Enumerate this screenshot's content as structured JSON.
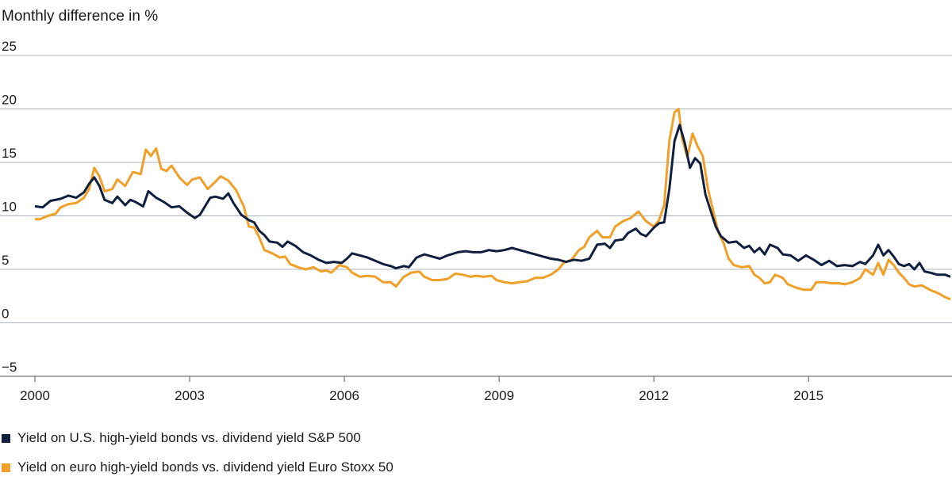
{
  "chart_data": {
    "type": "line",
    "ylabel": "Monthly difference in %",
    "ylim": [
      -5,
      25
    ],
    "xlim": [
      2000.0,
      2017.75
    ],
    "yticks": [
      "25",
      "20",
      "15",
      "10",
      "5",
      "0",
      "−5"
    ],
    "ytick_values": [
      25,
      20,
      15,
      10,
      5,
      0,
      -5
    ],
    "xticks": [
      "2000",
      "2003",
      "2006",
      "2009",
      "2012",
      "2015"
    ],
    "xtick_values": [
      2000,
      2003,
      2006,
      2009,
      2012,
      2015
    ],
    "grid": "horizontal",
    "legend_position": "bottom-left",
    "series": [
      {
        "name": "Yield on U.S. high-yield bonds vs. dividend yield S&P 500",
        "color": "#0f1f3d",
        "points": [
          [
            2000.0,
            10.9
          ],
          [
            2000.15,
            10.8
          ],
          [
            2000.3,
            11.4
          ],
          [
            2000.5,
            11.6
          ],
          [
            2000.65,
            11.9
          ],
          [
            2000.8,
            11.7
          ],
          [
            2000.95,
            12.2
          ],
          [
            2001.05,
            13.0
          ],
          [
            2001.15,
            13.6
          ],
          [
            2001.25,
            12.8
          ],
          [
            2001.35,
            11.5
          ],
          [
            2001.5,
            11.2
          ],
          [
            2001.6,
            11.8
          ],
          [
            2001.75,
            11.0
          ],
          [
            2001.85,
            11.5
          ],
          [
            2001.95,
            11.3
          ],
          [
            2002.1,
            10.9
          ],
          [
            2002.2,
            12.3
          ],
          [
            2002.35,
            11.7
          ],
          [
            2002.5,
            11.3
          ],
          [
            2002.65,
            10.8
          ],
          [
            2002.8,
            10.9
          ],
          [
            2002.95,
            10.3
          ],
          [
            2003.1,
            9.8
          ],
          [
            2003.2,
            10.1
          ],
          [
            2003.4,
            11.7
          ],
          [
            2003.5,
            11.8
          ],
          [
            2003.65,
            11.6
          ],
          [
            2003.75,
            12.1
          ],
          [
            2003.85,
            11.2
          ],
          [
            2004.0,
            10.1
          ],
          [
            2004.15,
            9.6
          ],
          [
            2004.25,
            9.4
          ],
          [
            2004.35,
            8.6
          ],
          [
            2004.45,
            8.2
          ],
          [
            2004.55,
            7.6
          ],
          [
            2004.7,
            7.5
          ],
          [
            2004.8,
            7.1
          ],
          [
            2004.9,
            7.6
          ],
          [
            2005.05,
            7.2
          ],
          [
            2005.2,
            6.6
          ],
          [
            2005.35,
            6.3
          ],
          [
            2005.5,
            5.9
          ],
          [
            2005.65,
            5.6
          ],
          [
            2005.8,
            5.7
          ],
          [
            2005.95,
            5.6
          ],
          [
            2006.05,
            6.0
          ],
          [
            2006.15,
            6.5
          ],
          [
            2006.3,
            6.3
          ],
          [
            2006.45,
            6.1
          ],
          [
            2006.6,
            5.8
          ],
          [
            2006.75,
            5.5
          ],
          [
            2006.9,
            5.3
          ],
          [
            2007.0,
            5.1
          ],
          [
            2007.15,
            5.3
          ],
          [
            2007.25,
            5.2
          ],
          [
            2007.4,
            6.1
          ],
          [
            2007.55,
            6.4
          ],
          [
            2007.7,
            6.2
          ],
          [
            2007.85,
            6.0
          ],
          [
            2008.0,
            6.3
          ],
          [
            2008.2,
            6.6
          ],
          [
            2008.35,
            6.7
          ],
          [
            2008.5,
            6.6
          ],
          [
            2008.65,
            6.6
          ],
          [
            2008.8,
            6.8
          ],
          [
            2008.95,
            6.7
          ],
          [
            2009.1,
            6.8
          ],
          [
            2009.25,
            7.0
          ],
          [
            2009.4,
            6.8
          ],
          [
            2009.55,
            6.6
          ],
          [
            2009.7,
            6.4
          ],
          [
            2009.85,
            6.2
          ],
          [
            2010.0,
            6.0
          ],
          [
            2010.15,
            5.9
          ],
          [
            2010.3,
            5.7
          ],
          [
            2010.45,
            5.9
          ],
          [
            2010.6,
            5.8
          ],
          [
            2010.75,
            6.0
          ],
          [
            2010.9,
            7.3
          ],
          [
            2011.05,
            7.4
          ],
          [
            2011.15,
            7.0
          ],
          [
            2011.25,
            7.7
          ],
          [
            2011.4,
            7.8
          ],
          [
            2011.5,
            8.4
          ],
          [
            2011.65,
            8.8
          ],
          [
            2011.75,
            8.3
          ],
          [
            2011.85,
            8.1
          ],
          [
            2012.0,
            8.9
          ],
          [
            2012.1,
            9.3
          ],
          [
            2012.2,
            9.4
          ],
          [
            2012.3,
            12.5
          ],
          [
            2012.4,
            17.0
          ],
          [
            2012.5,
            18.5
          ],
          [
            2012.6,
            16.8
          ],
          [
            2012.7,
            14.5
          ],
          [
            2012.8,
            15.4
          ],
          [
            2012.9,
            14.9
          ],
          [
            2013.0,
            12.0
          ],
          [
            2013.1,
            10.5
          ],
          [
            2013.2,
            9.0
          ],
          [
            2013.3,
            8.1
          ],
          [
            2013.45,
            7.5
          ],
          [
            2013.6,
            7.6
          ],
          [
            2013.75,
            7.0
          ],
          [
            2013.85,
            7.2
          ],
          [
            2013.95,
            6.6
          ],
          [
            2014.05,
            7.0
          ],
          [
            2014.15,
            6.4
          ],
          [
            2014.25,
            7.3
          ],
          [
            2014.4,
            7.0
          ],
          [
            2014.5,
            6.4
          ],
          [
            2014.65,
            6.3
          ],
          [
            2014.8,
            5.8
          ],
          [
            2014.95,
            6.3
          ],
          [
            2015.1,
            5.9
          ],
          [
            2015.25,
            5.4
          ],
          [
            2015.4,
            5.8
          ],
          [
            2015.55,
            5.3
          ],
          [
            2015.7,
            5.4
          ],
          [
            2015.85,
            5.3
          ],
          [
            2016.0,
            5.7
          ],
          [
            2016.1,
            5.5
          ],
          [
            2016.25,
            6.3
          ],
          [
            2016.35,
            7.3
          ],
          [
            2016.45,
            6.3
          ],
          [
            2016.55,
            6.8
          ],
          [
            2016.65,
            6.2
          ],
          [
            2016.75,
            5.5
          ],
          [
            2016.85,
            5.3
          ],
          [
            2016.95,
            5.5
          ],
          [
            2017.05,
            5.0
          ],
          [
            2017.15,
            5.6
          ],
          [
            2017.25,
            4.8
          ],
          [
            2017.35,
            4.7
          ],
          [
            2017.5,
            4.5
          ],
          [
            2017.65,
            4.5
          ],
          [
            2017.75,
            4.3
          ]
        ]
      },
      {
        "name": "Yield on euro high-yield bonds vs. dividend yield Euro Stoxx 50",
        "color": "#f0a028",
        "points": [
          [
            2000.0,
            9.7
          ],
          [
            2000.1,
            9.7
          ],
          [
            2000.25,
            10.0
          ],
          [
            2000.4,
            10.2
          ],
          [
            2000.5,
            10.8
          ],
          [
            2000.65,
            11.1
          ],
          [
            2000.8,
            11.2
          ],
          [
            2000.95,
            11.7
          ],
          [
            2001.05,
            12.5
          ],
          [
            2001.15,
            14.5
          ],
          [
            2001.25,
            13.7
          ],
          [
            2001.35,
            12.3
          ],
          [
            2001.5,
            12.5
          ],
          [
            2001.6,
            13.4
          ],
          [
            2001.75,
            12.8
          ],
          [
            2001.9,
            14.1
          ],
          [
            2002.05,
            13.9
          ],
          [
            2002.15,
            16.2
          ],
          [
            2002.25,
            15.6
          ],
          [
            2002.35,
            16.3
          ],
          [
            2002.45,
            14.4
          ],
          [
            2002.55,
            14.2
          ],
          [
            2002.65,
            14.7
          ],
          [
            2002.8,
            13.6
          ],
          [
            2002.95,
            12.9
          ],
          [
            2003.05,
            13.4
          ],
          [
            2003.2,
            13.6
          ],
          [
            2003.35,
            12.5
          ],
          [
            2003.5,
            13.2
          ],
          [
            2003.6,
            13.7
          ],
          [
            2003.75,
            13.3
          ],
          [
            2003.9,
            12.4
          ],
          [
            2004.05,
            10.9
          ],
          [
            2004.15,
            9.0
          ],
          [
            2004.25,
            8.9
          ],
          [
            2004.35,
            8.0
          ],
          [
            2004.45,
            6.8
          ],
          [
            2004.6,
            6.5
          ],
          [
            2004.75,
            6.1
          ],
          [
            2004.85,
            6.2
          ],
          [
            2004.95,
            5.5
          ],
          [
            2005.1,
            5.2
          ],
          [
            2005.25,
            5.0
          ],
          [
            2005.4,
            5.2
          ],
          [
            2005.55,
            4.8
          ],
          [
            2005.65,
            4.9
          ],
          [
            2005.75,
            4.7
          ],
          [
            2005.9,
            5.4
          ],
          [
            2006.05,
            5.2
          ],
          [
            2006.15,
            4.7
          ],
          [
            2006.3,
            4.3
          ],
          [
            2006.45,
            4.4
          ],
          [
            2006.6,
            4.3
          ],
          [
            2006.75,
            3.8
          ],
          [
            2006.9,
            3.8
          ],
          [
            2007.0,
            3.4
          ],
          [
            2007.15,
            4.3
          ],
          [
            2007.3,
            4.7
          ],
          [
            2007.45,
            4.8
          ],
          [
            2007.55,
            4.3
          ],
          [
            2007.7,
            4.0
          ],
          [
            2007.85,
            4.0
          ],
          [
            2008.0,
            4.1
          ],
          [
            2008.15,
            4.6
          ],
          [
            2008.3,
            4.5
          ],
          [
            2008.45,
            4.3
          ],
          [
            2008.55,
            4.4
          ],
          [
            2008.7,
            4.3
          ],
          [
            2008.85,
            4.4
          ],
          [
            2008.95,
            4.0
          ],
          [
            2009.1,
            3.8
          ],
          [
            2009.25,
            3.7
          ],
          [
            2009.4,
            3.8
          ],
          [
            2009.55,
            3.9
          ],
          [
            2009.7,
            4.2
          ],
          [
            2009.85,
            4.2
          ],
          [
            2010.0,
            4.5
          ],
          [
            2010.15,
            5.0
          ],
          [
            2010.25,
            5.6
          ],
          [
            2010.4,
            5.9
          ],
          [
            2010.55,
            6.8
          ],
          [
            2010.65,
            7.1
          ],
          [
            2010.75,
            8.0
          ],
          [
            2010.9,
            8.6
          ],
          [
            2011.0,
            8.0
          ],
          [
            2011.15,
            8.0
          ],
          [
            2011.25,
            9.0
          ],
          [
            2011.4,
            9.5
          ],
          [
            2011.55,
            9.8
          ],
          [
            2011.7,
            10.4
          ],
          [
            2011.85,
            9.5
          ],
          [
            2012.0,
            9.0
          ],
          [
            2012.1,
            9.6
          ],
          [
            2012.2,
            11.0
          ],
          [
            2012.3,
            17.0
          ],
          [
            2012.4,
            19.7
          ],
          [
            2012.48,
            20.0
          ],
          [
            2012.55,
            17.2
          ],
          [
            2012.65,
            15.5
          ],
          [
            2012.75,
            17.7
          ],
          [
            2012.85,
            16.5
          ],
          [
            2012.95,
            15.6
          ],
          [
            2013.05,
            12.5
          ],
          [
            2013.15,
            10.5
          ],
          [
            2013.25,
            8.5
          ],
          [
            2013.35,
            7.5
          ],
          [
            2013.45,
            6.0
          ],
          [
            2013.55,
            5.4
          ],
          [
            2013.7,
            5.2
          ],
          [
            2013.85,
            5.3
          ],
          [
            2013.95,
            4.5
          ],
          [
            2014.05,
            4.2
          ],
          [
            2014.15,
            3.7
          ],
          [
            2014.25,
            3.8
          ],
          [
            2014.35,
            4.5
          ],
          [
            2014.5,
            4.2
          ],
          [
            2014.6,
            3.6
          ],
          [
            2014.75,
            3.3
          ],
          [
            2014.9,
            3.1
          ],
          [
            2015.05,
            3.1
          ],
          [
            2015.15,
            3.8
          ],
          [
            2015.3,
            3.8
          ],
          [
            2015.45,
            3.7
          ],
          [
            2015.6,
            3.7
          ],
          [
            2015.7,
            3.6
          ],
          [
            2015.85,
            3.8
          ],
          [
            2016.0,
            4.2
          ],
          [
            2016.1,
            5.0
          ],
          [
            2016.25,
            4.5
          ],
          [
            2016.35,
            5.6
          ],
          [
            2016.45,
            4.5
          ],
          [
            2016.55,
            5.9
          ],
          [
            2016.65,
            5.4
          ],
          [
            2016.75,
            4.7
          ],
          [
            2016.85,
            4.2
          ],
          [
            2016.95,
            3.6
          ],
          [
            2017.05,
            3.4
          ],
          [
            2017.2,
            3.5
          ],
          [
            2017.35,
            3.1
          ],
          [
            2017.5,
            2.8
          ],
          [
            2017.65,
            2.4
          ],
          [
            2017.75,
            2.2
          ]
        ]
      }
    ]
  },
  "legend": {
    "items": [
      {
        "label": "Yield on U.S. high-yield bonds vs. dividend yield S&P 500",
        "color": "#0f1f3d"
      },
      {
        "label": "Yield on euro high-yield bonds vs. dividend yield Euro Stoxx 50",
        "color": "#f0a028"
      }
    ]
  }
}
